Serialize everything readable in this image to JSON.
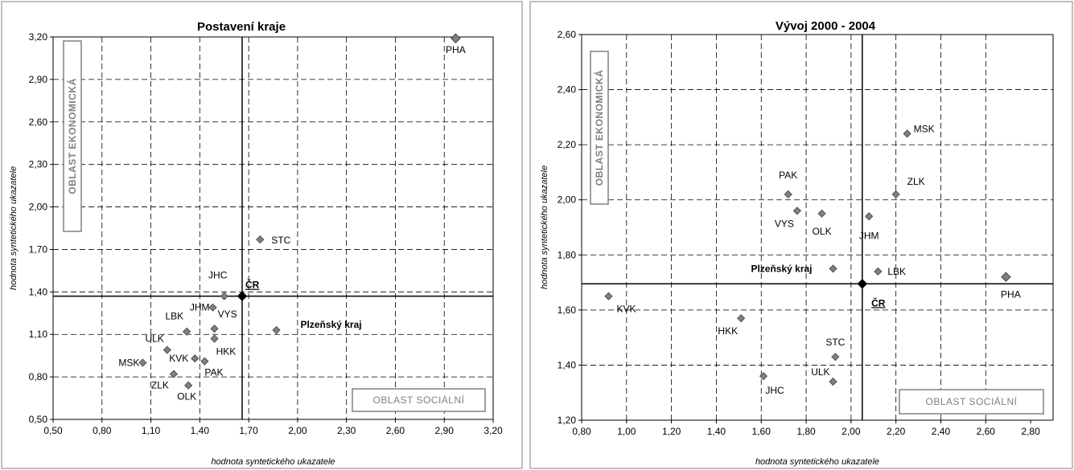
{
  "chart_data": [
    {
      "type": "scatter",
      "title": "Postavení kraje",
      "xlabel": "hodnota syntetického ukazatele",
      "ylabel": "hodnota syntetického ukazatele",
      "xlim": [
        0.5,
        3.2
      ],
      "ylim": [
        0.5,
        3.2
      ],
      "x_ticks": [
        "0,50",
        "0,80",
        "1,10",
        "1,40",
        "1,70",
        "2,00",
        "2,30",
        "2,60",
        "2,90",
        "3,20"
      ],
      "y_ticks": [
        "0,50",
        "0,80",
        "1,10",
        "1,40",
        "1,70",
        "2,00",
        "2,30",
        "2,60",
        "2,90",
        "3,20"
      ],
      "grid": true,
      "reference_lines": {
        "x": 1.66,
        "y": 1.37
      },
      "quadrant_labels": {
        "vertical": "OBLAST EKONOMICKÁ",
        "horizontal": "OBLAST SOCIÁLNÍ"
      },
      "points": [
        {
          "label": "PHA",
          "x": 2.97,
          "y": 3.19
        },
        {
          "label": "STC",
          "x": 1.77,
          "y": 1.77
        },
        {
          "label": "JHC",
          "x": 1.55,
          "y": 1.37
        },
        {
          "label": "ČR",
          "x": 1.66,
          "y": 1.37
        },
        {
          "label": "JHM",
          "x": 1.48,
          "y": 1.29
        },
        {
          "label": "LBK",
          "x": 1.32,
          "y": 1.12
        },
        {
          "label": "VYS",
          "x": 1.49,
          "y": 1.14
        },
        {
          "label": "Plzeňský kraj",
          "x": 1.87,
          "y": 1.13
        },
        {
          "label": "HKK",
          "x": 1.49,
          "y": 1.07
        },
        {
          "label": "ULK",
          "x": 1.2,
          "y": 0.99
        },
        {
          "label": "KVK",
          "x": 1.37,
          "y": 0.93
        },
        {
          "label": "MSK",
          "x": 1.05,
          "y": 0.9
        },
        {
          "label": "PAK",
          "x": 1.43,
          "y": 0.91
        },
        {
          "label": "ZLK",
          "x": 1.24,
          "y": 0.82
        },
        {
          "label": "OLK",
          "x": 1.33,
          "y": 0.74
        }
      ]
    },
    {
      "type": "scatter",
      "title": "Vývoj 2000 - 2004",
      "xlabel": "hodnota syntetického ukazatele",
      "ylabel": "hodnota syntetického ukazatele",
      "xlim": [
        0.8,
        2.9
      ],
      "ylim": [
        1.2,
        2.6
      ],
      "x_ticks": [
        "0,80",
        "1,00",
        "1,20",
        "1,40",
        "1,60",
        "1,80",
        "2,00",
        "2,20",
        "2,40",
        "2,60",
        "2,80"
      ],
      "y_ticks": [
        "1,20",
        "1,40",
        "1,60",
        "1,80",
        "2,00",
        "2,20",
        "2,40",
        "2,60"
      ],
      "grid": true,
      "reference_lines": {
        "x": 2.05,
        "y": 1.695
      },
      "quadrant_labels": {
        "vertical": "OBLAST EKONOMICKÁ",
        "horizontal": "OBLAST SOCIÁLNÍ"
      },
      "points": [
        {
          "label": "MSK",
          "x": 2.25,
          "y": 2.24
        },
        {
          "label": "PAK",
          "x": 1.72,
          "y": 2.02
        },
        {
          "label": "ZLK",
          "x": 2.2,
          "y": 2.02
        },
        {
          "label": "VYS",
          "x": 1.76,
          "y": 1.96
        },
        {
          "label": "OLK",
          "x": 1.87,
          "y": 1.95
        },
        {
          "label": "JHM",
          "x": 2.08,
          "y": 1.94
        },
        {
          "label": "Plzeňský kraj",
          "x": 1.92,
          "y": 1.75
        },
        {
          "label": "LBK",
          "x": 2.12,
          "y": 1.74
        },
        {
          "label": "ČR",
          "x": 2.05,
          "y": 1.695
        },
        {
          "label": "PHA",
          "x": 2.69,
          "y": 1.72
        },
        {
          "label": "KVK",
          "x": 0.92,
          "y": 1.65
        },
        {
          "label": "HKK",
          "x": 1.51,
          "y": 1.57
        },
        {
          "label": "STC",
          "x": 1.93,
          "y": 1.43
        },
        {
          "label": "JHC",
          "x": 1.61,
          "y": 1.36
        },
        {
          "label": "ULK",
          "x": 1.92,
          "y": 1.34
        }
      ]
    }
  ]
}
